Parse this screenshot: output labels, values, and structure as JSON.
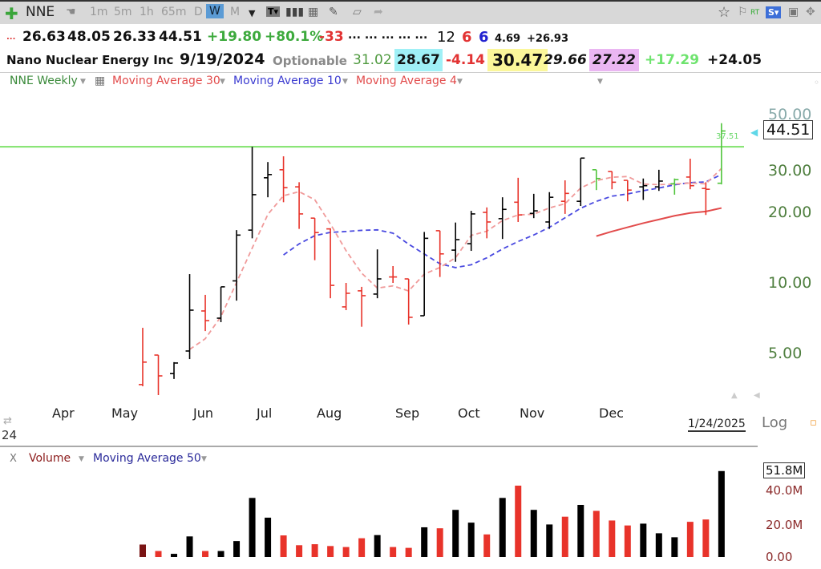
{
  "toolbar": {
    "symbol": "NNE",
    "intervals": [
      "1m",
      "5m",
      "1h",
      "65m",
      "D",
      "W",
      "M"
    ],
    "selected_interval": "W",
    "right_rt": "RT",
    "right_s": "S▾",
    "icons": [
      "plus-icon",
      "hand-icon",
      "chevron-down-icon",
      "text-icon",
      "bars-icon",
      "grid-add-icon",
      "pencil-icon",
      "note-icon",
      "share-icon",
      "star-icon",
      "flag-icon",
      "save-icon",
      "move-icon"
    ]
  },
  "quote": {
    "dots": "...",
    "open": "26.63",
    "high": "48.05",
    "low": "26.33",
    "close": "44.51",
    "change": "+19.80",
    "change_pct": "+80.1%",
    "val_neg": "-33",
    "ellipses": "... ... ... ... ...",
    "n1": "12",
    "n2": "6",
    "n3": "6",
    "n4": "4.69",
    "n5": "+26.93"
  },
  "info": {
    "name": "Nano Nuclear Energy Inc",
    "date": "9/19/2024",
    "optionable": "Optionable",
    "v1": "31.02",
    "v2": "28.67",
    "v3": "-4.14",
    "v4": "30.47",
    "v5": "29.66",
    "v6": "27.22",
    "v7": "+17.29",
    "v8": "+24.05"
  },
  "legend": {
    "weekly": "NNE Weekly",
    "ma30": "Moving Average 30",
    "ma10": "Moving Average 10",
    "ma4": "Moving Average 4",
    "volume": "Volume",
    "vol_ma": "Moving Average 50",
    "close_x": "X"
  },
  "colors": {
    "up": "#000000",
    "down": "#e8332a",
    "green": "#4fc43a",
    "ma30": "#e24b4b",
    "ma10": "#4a4ae0",
    "ma4": "#f09a9a",
    "hline": "#7fe26a",
    "axis": "#4f7f3f"
  },
  "chart_data": {
    "type": "ohlc",
    "scale": "log",
    "price_ticks": [
      "50.00",
      "30.00",
      "20.00",
      "10.00",
      "5.00"
    ],
    "x_ticks": [
      "Apr",
      "May",
      "Jun",
      "Jul",
      "Aug",
      "Sep",
      "Oct",
      "Nov",
      "Dec"
    ],
    "last_date": "1/24/2025",
    "last_price": "44.51",
    "hline": {
      "value": 37.51,
      "label": "37.51"
    },
    "scale_label": "Log",
    "left_label": "24",
    "dates": [
      "2024-05-10",
      "2024-05-17",
      "2024-05-24",
      "2024-05-31",
      "2024-06-07",
      "2024-06-14",
      "2024-06-21",
      "2024-06-28",
      "2024-07-05",
      "2024-07-12",
      "2024-07-19",
      "2024-07-26",
      "2024-08-02",
      "2024-08-09",
      "2024-08-16",
      "2024-08-23",
      "2024-08-30",
      "2024-09-06",
      "2024-09-13",
      "2024-09-20",
      "2024-09-27",
      "2024-10-04",
      "2024-10-11",
      "2024-10-18",
      "2024-10-25",
      "2024-11-01",
      "2024-11-08",
      "2024-11-15",
      "2024-11-22",
      "2024-11-29",
      "2024-12-06",
      "2024-12-13",
      "2024-12-20",
      "2024-12-27",
      "2025-01-03",
      "2025-01-10",
      "2025-01-17",
      "2025-01-24"
    ],
    "ohlc": [
      [
        3.68,
        6.43,
        3.62,
        4.59
      ],
      [
        4.92,
        4.92,
        3.32,
        4.01
      ],
      [
        4.1,
        4.59,
        3.89,
        4.55
      ],
      [
        5.12,
        10.9,
        4.73,
        7.65
      ],
      [
        7.59,
        8.89,
        6.23,
        6.9
      ],
      [
        7.07,
        9.62,
        6.8,
        9.62
      ],
      [
        10.2,
        16.8,
        8.4,
        16.0
      ],
      [
        16.8,
        38.1,
        15.5,
        23.8
      ],
      [
        28.1,
        32.8,
        23.2,
        29.0
      ],
      [
        30.4,
        34.7,
        22.1,
        25.5
      ],
      [
        25.7,
        26.9,
        17.0,
        19.7
      ],
      [
        18.9,
        18.9,
        12.5,
        16.4
      ],
      [
        17.0,
        17.1,
        8.6,
        9.76
      ],
      [
        7.9,
        10.0,
        7.65,
        9.03
      ],
      [
        9.25,
        9.62,
        6.5,
        8.82
      ],
      [
        8.96,
        13.9,
        8.6,
        10.4
      ],
      [
        10.6,
        11.8,
        10.0,
        10.6
      ],
      [
        10.4,
        10.4,
        6.64,
        7.13
      ],
      [
        7.24,
        16.5,
        7.24,
        15.5
      ],
      [
        16.7,
        16.7,
        10.6,
        13.3
      ],
      [
        13.8,
        18.1,
        12.3,
        15.3
      ],
      [
        14.7,
        20.3,
        13.7,
        19.7
      ],
      [
        20.0,
        21.0,
        15.5,
        18.2
      ],
      [
        18.8,
        23.2,
        15.4,
        20.6
      ],
      [
        22.1,
        28.1,
        18.2,
        19.5
      ],
      [
        19.8,
        24.0,
        18.9,
        20.3
      ],
      [
        18.2,
        24.4,
        17.0,
        23.2
      ],
      [
        22.3,
        27.4,
        19.7,
        24.1
      ],
      [
        22.3,
        34.1,
        21.3,
        34.1
      ],
      [
        30.4,
        30.4,
        24.9,
        27.9
      ],
      [
        29.9,
        29.9,
        25.1,
        26.9
      ],
      [
        27.4,
        27.4,
        22.3,
        24.9
      ],
      [
        25.7,
        27.9,
        22.6,
        26.0
      ],
      [
        25.7,
        30.4,
        24.7,
        27.2
      ],
      [
        26.5,
        27.9,
        23.8,
        27.6
      ],
      [
        28.3,
        33.9,
        25.1,
        26.0
      ],
      [
        25.3,
        26.9,
        19.5,
        25.1
      ],
      [
        26.63,
        48.05,
        26.33,
        44.51
      ]
    ],
    "bar_colors": [
      "down",
      "down",
      "up",
      "up",
      "down",
      "up",
      "up",
      "up",
      "up",
      "down",
      "down",
      "down",
      "down",
      "down",
      "down",
      "up",
      "down",
      "down",
      "up",
      "down",
      "up",
      "up",
      "down",
      "up",
      "down",
      "up",
      "up",
      "down",
      "up",
      "green",
      "down",
      "down",
      "up",
      "up",
      "green",
      "down",
      "down",
      "green"
    ],
    "volume_ticks": [
      "51.8M",
      "40.0M",
      "20.0M",
      "0.00"
    ],
    "volume_millions": [
      7.5,
      3.6,
      1.9,
      12.4,
      3.6,
      3.6,
      9.6,
      35.6,
      23.7,
      13.0,
      7.1,
      7.7,
      6.6,
      6.0,
      11.3,
      13.2,
      6.0,
      5.5,
      17.9,
      17.3,
      28.4,
      20.7,
      13.6,
      35.6,
      43.0,
      28.4,
      19.6,
      24.3,
      31.4,
      27.8,
      22.0,
      19.0,
      20.1,
      14.3,
      11.9,
      21.2,
      22.6,
      51.8
    ],
    "volume_colors": [
      "#7a1414",
      "down",
      "up",
      "up",
      "down",
      "up",
      "up",
      "up",
      "up",
      "down",
      "down",
      "down",
      "down",
      "down",
      "down",
      "up",
      "down",
      "down",
      "up",
      "down",
      "up",
      "up",
      "down",
      "up",
      "down",
      "up",
      "up",
      "down",
      "up",
      "down",
      "down",
      "down",
      "up",
      "up",
      "up",
      "down",
      "down",
      "up"
    ],
    "moving_averages": [
      {
        "name": "Moving Average 30",
        "period": 30,
        "style": "solid"
      },
      {
        "name": "Moving Average 10",
        "period": 10,
        "style": "dashed"
      },
      {
        "name": "Moving Average 4",
        "period": 4,
        "style": "dashed"
      }
    ]
  }
}
